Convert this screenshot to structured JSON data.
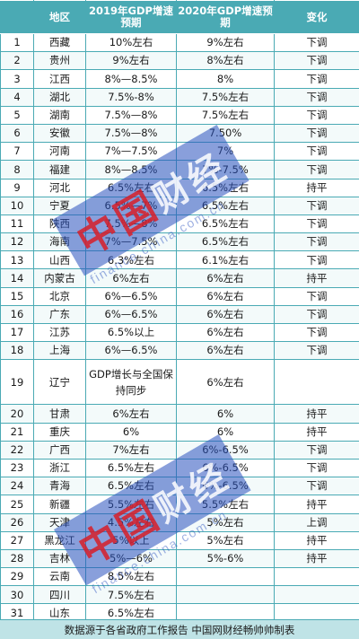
{
  "table": {
    "headers": {
      "num": "",
      "region": "地区",
      "gdp2019": "2019年GDP增速预期",
      "gdp2020": "2020年GDP增速预期",
      "change": "变化"
    },
    "rows": [
      {
        "num": "1",
        "region": "西藏",
        "gdp2019": "10%左右",
        "gdp2020": "9%左右",
        "change": "下调"
      },
      {
        "num": "2",
        "region": "贵州",
        "gdp2019": "9%左右",
        "gdp2020": "8%左右",
        "change": "下调"
      },
      {
        "num": "3",
        "region": "江西",
        "gdp2019": "8%—8.5%",
        "gdp2020": "8%",
        "change": "下调"
      },
      {
        "num": "4",
        "region": "湖北",
        "gdp2019": "7.5%-8%",
        "gdp2020": "7.5%左右",
        "change": "下调"
      },
      {
        "num": "5",
        "region": "湖南",
        "gdp2019": "7.5%—8%",
        "gdp2020": "7.5%左右",
        "change": "下调"
      },
      {
        "num": "6",
        "region": "安徽",
        "gdp2019": "7.5%—8%",
        "gdp2020": "7.50%",
        "change": "下调"
      },
      {
        "num": "7",
        "region": "河南",
        "gdp2019": "7%—7.5%",
        "gdp2020": "7%",
        "change": "下调"
      },
      {
        "num": "8",
        "region": "福建",
        "gdp2019": "8%—8.5%",
        "gdp2020": "7%-7.5%",
        "change": "下调"
      },
      {
        "num": "9",
        "region": "河北",
        "gdp2019": "6.5%左右",
        "gdp2020": "6.5%左右",
        "change": "持平"
      },
      {
        "num": "10",
        "region": "宁夏",
        "gdp2019": "6.5%—7%",
        "gdp2020": "6.5%左右",
        "change": "下调"
      },
      {
        "num": "11",
        "region": "陕西",
        "gdp2019": "7.5%—8%",
        "gdp2020": "6.5%左右",
        "change": "下调"
      },
      {
        "num": "12",
        "region": "海南",
        "gdp2019": "7%—7.5%",
        "gdp2020": "6.5%左右",
        "change": "下调"
      },
      {
        "num": "13",
        "region": "山西",
        "gdp2019": "6.3%左右",
        "gdp2020": "6.1%左右",
        "change": "下调"
      },
      {
        "num": "14",
        "region": "内蒙古",
        "gdp2019": "6%左右",
        "gdp2020": "6%左右",
        "change": "持平"
      },
      {
        "num": "15",
        "region": "北京",
        "gdp2019": "6%—6.5%",
        "gdp2020": "6%左右",
        "change": "下调"
      },
      {
        "num": "16",
        "region": "广东",
        "gdp2019": "6%—6.5%",
        "gdp2020": "6%左右",
        "change": "下调"
      },
      {
        "num": "17",
        "region": "江苏",
        "gdp2019": "6.5%以上",
        "gdp2020": "6%左右",
        "change": "下调"
      },
      {
        "num": "18",
        "region": "上海",
        "gdp2019": "6%—6.5%",
        "gdp2020": "6%左右",
        "change": "下调"
      },
      {
        "num": "19",
        "region": "辽宁",
        "gdp2019": "GDP增长与全国保持同步",
        "gdp2020": "6%左右",
        "change": "",
        "tall": true
      },
      {
        "num": "20",
        "region": "甘肃",
        "gdp2019": "6%左右",
        "gdp2020": "6%",
        "change": "持平"
      },
      {
        "num": "21",
        "region": "重庆",
        "gdp2019": "6%",
        "gdp2020": "6%",
        "change": "持平"
      },
      {
        "num": "22",
        "region": "广西",
        "gdp2019": "7%左右",
        "gdp2020": "6%-6.5%",
        "change": "下调"
      },
      {
        "num": "23",
        "region": "浙江",
        "gdp2019": "6.5%左右",
        "gdp2020": "6%-6.5%",
        "change": "下调"
      },
      {
        "num": "24",
        "region": "青海",
        "gdp2019": "6.5%左右",
        "gdp2020": "6%-6.5%",
        "change": "下调"
      },
      {
        "num": "25",
        "region": "新疆",
        "gdp2019": "5.5%左右",
        "gdp2020": "5.5%左右",
        "change": "持平"
      },
      {
        "num": "26",
        "region": "天津",
        "gdp2019": "4.5%左右",
        "gdp2020": "5%左右",
        "change": "上调"
      },
      {
        "num": "27",
        "region": "黑龙江",
        "gdp2019": "5%以上",
        "gdp2020": "5%左右",
        "change": "持平"
      },
      {
        "num": "28",
        "region": "吉林",
        "gdp2019": "5%—6%",
        "gdp2020": "5%-6%",
        "change": "持平"
      },
      {
        "num": "29",
        "region": "云南",
        "gdp2019": "8.5%左右",
        "gdp2020": "",
        "change": ""
      },
      {
        "num": "30",
        "region": "四川",
        "gdp2019": "7.5%左右",
        "gdp2020": "",
        "change": ""
      },
      {
        "num": "31",
        "region": "山东",
        "gdp2019": "6.5%左右",
        "gdp2020": "",
        "change": ""
      }
    ]
  },
  "footer": "数据源于各省政府工作报告 中国网财经畅帅帅制表",
  "watermark": {
    "brand_red": "中国",
    "brand": "财经",
    "url": "finance.china.com.cn"
  },
  "colors": {
    "header": "#4aaab4",
    "footer": "#bfe3e6"
  }
}
